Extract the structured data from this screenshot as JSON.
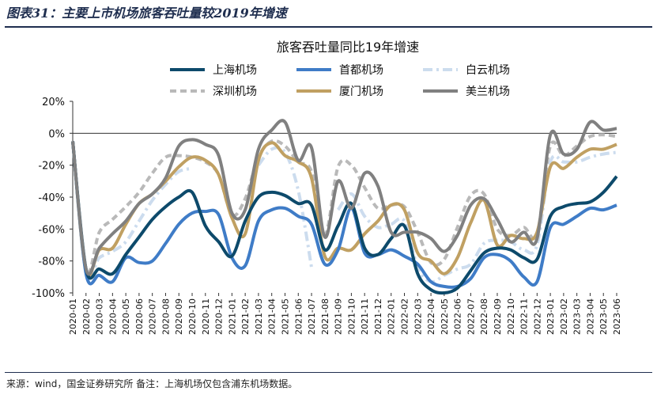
{
  "figure": {
    "title": "图表31：主要上市机场旅客吞吐量较2019年增速",
    "footnote": "来源：wind，国金证券研究所   备注：上海机场仅包含浦东机场数据。"
  },
  "chart_data": {
    "type": "line",
    "title": "旅客吞吐量同比19年增速",
    "xlabel": "",
    "ylabel": "",
    "ylim": [
      -100,
      20
    ],
    "yticks": [
      20,
      0,
      -20,
      -40,
      -60,
      -80,
      -100
    ],
    "ytick_labels": [
      "20%",
      "0%",
      "-20%",
      "-40%",
      "-60%",
      "-80%",
      "-100%"
    ],
    "grid": false,
    "legend_position": "top",
    "categories": [
      "2020-01",
      "2020-02",
      "2020-03",
      "2020-04",
      "2020-05",
      "2020-06",
      "2020-07",
      "2020-08",
      "2020-09",
      "2020-10",
      "2020-11",
      "2020-12",
      "2021-01",
      "2021-02",
      "2021-03",
      "2021-04",
      "2021-05",
      "2021-06",
      "2021-07",
      "2021-08",
      "2021-09",
      "2021-10",
      "2021-11",
      "2021-12",
      "2022-01",
      "2022-02",
      "2022-03",
      "2022-04",
      "2022-05",
      "2022-06",
      "2022-07",
      "2022-08",
      "2022-09",
      "2022-10",
      "2022-11",
      "2022-12",
      "2023-01",
      "2023-02",
      "2023-03",
      "2023-04",
      "2023-05",
      "2023-06"
    ],
    "series": [
      {
        "name": "上海机场",
        "color": "#0d4a6b",
        "dash": "solid",
        "values": [
          -5,
          -85,
          -85,
          -88,
          -76,
          -65,
          -54,
          -46,
          -40,
          -37,
          -58,
          -68,
          -77,
          -55,
          -40,
          -37,
          -39,
          -44,
          -45,
          -73,
          -58,
          -44,
          -72,
          -76,
          -66,
          -58,
          -88,
          -98,
          -100,
          -97,
          -86,
          -75,
          -72,
          -73,
          -78,
          -79,
          -52,
          -46,
          -44,
          -43,
          -37,
          -27
        ]
      },
      {
        "name": "首都机场",
        "color": "#3f7cc7",
        "dash": "solid",
        "values": [
          -5,
          -88,
          -89,
          -93,
          -78,
          -81,
          -80,
          -69,
          -57,
          -50,
          -49,
          -51,
          -78,
          -83,
          -55,
          -48,
          -47,
          -52,
          -57,
          -82,
          -73,
          -47,
          -75,
          -76,
          -73,
          -77,
          -82,
          -93,
          -96,
          -96,
          -91,
          -78,
          -76,
          -80,
          -90,
          -93,
          -59,
          -57,
          -52,
          -47,
          -48,
          -45
        ]
      },
      {
        "name": "白云机场",
        "color": "#ccdcee",
        "dash": "dashdot",
        "values": [
          -5,
          -87,
          -78,
          -74,
          -68,
          -55,
          -42,
          -32,
          -24,
          -22,
          null,
          null,
          null,
          null,
          -20,
          -10,
          -12,
          -36,
          -84,
          null,
          -48,
          -38,
          -52,
          -59,
          -57,
          -55,
          -84,
          -93,
          -89,
          -85,
          -82,
          -69,
          -67,
          -68,
          -73,
          -70,
          -18,
          -18,
          -18,
          -15,
          -13,
          -12
        ]
      },
      {
        "name": "深圳机场",
        "color": "#b9b9b9",
        "dash": "dashed",
        "values": [
          -5,
          -86,
          -62,
          -54,
          -46,
          -37,
          -25,
          -15,
          -14,
          -15,
          -18,
          -26,
          -51,
          -41,
          -15,
          -5,
          -8,
          -18,
          -24,
          -64,
          -21,
          -20,
          -34,
          -47,
          -45,
          -46,
          -62,
          -81,
          -79,
          -59,
          -39,
          -38,
          -60,
          -64,
          -59,
          -63,
          -8,
          -14,
          -8,
          -2,
          -1,
          -2
        ]
      },
      {
        "name": "厦门机场",
        "color": "#c0a062",
        "dash": "solid",
        "values": [
          -5,
          -86,
          -73,
          -72,
          -57,
          -44,
          -38,
          -30,
          -21,
          -15,
          -17,
          -26,
          -53,
          -63,
          -17,
          -6,
          -14,
          -18,
          -28,
          -77,
          -72,
          -73,
          -63,
          -55,
          -45,
          -48,
          -75,
          -80,
          -88,
          -78,
          -56,
          -42,
          -70,
          -64,
          -66,
          -62,
          -21,
          -22,
          -15,
          -10,
          -10,
          -7
        ]
      },
      {
        "name": "美兰机场",
        "color": "#808080",
        "dash": "solid",
        "values": [
          -5,
          -85,
          -72,
          -63,
          -55,
          -44,
          -38,
          -28,
          -8,
          -4,
          -7,
          -14,
          -50,
          -48,
          -10,
          2,
          7,
          -17,
          -9,
          -65,
          -30,
          -47,
          -25,
          -33,
          -62,
          -62,
          -62,
          -66,
          -74,
          -64,
          -45,
          -41,
          -54,
          -68,
          -62,
          -66,
          -1,
          -13,
          -10,
          7,
          2,
          3
        ]
      }
    ]
  }
}
